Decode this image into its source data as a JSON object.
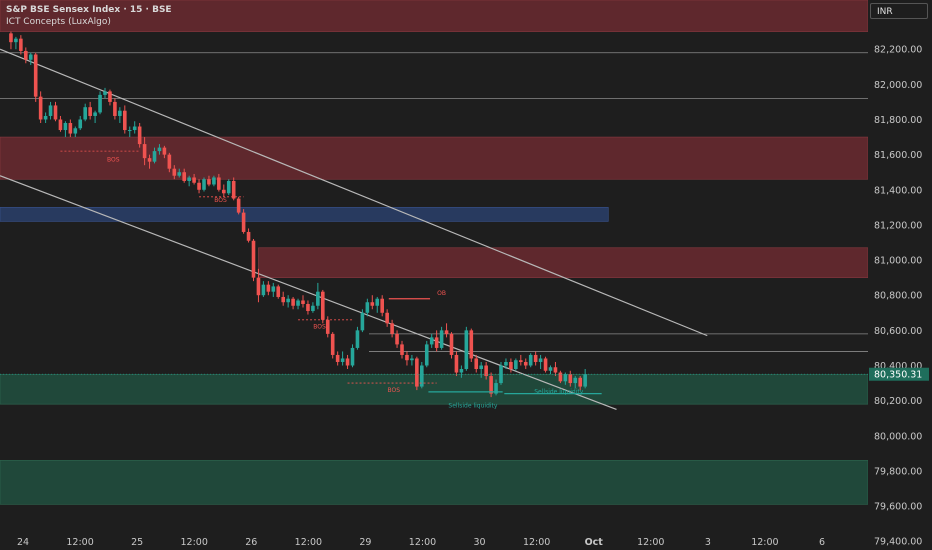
{
  "header": {
    "title": "S&P BSE Sensex Index · 15 · BSE",
    "indicator": "ICT Concepts (LuxAlgo)"
  },
  "currency": "INR",
  "colors": {
    "background": "#1e1e1e",
    "up": "#26a69a",
    "down": "#ef5350",
    "bearish_zone": "#6b2a30",
    "bullish_zone": "#21503f",
    "blue_zone": "#2a3f6b",
    "trendline": "#b8b8b8",
    "axis_text": "#c8c8c8",
    "last_price_bg": "#1f6e5c"
  },
  "chart_data": {
    "type": "candlestick",
    "title": "S&P BSE Sensex Index · 15 · BSE",
    "y_ticks": [
      "82,200.00",
      "82,000.00",
      "81,800.00",
      "81,600.00",
      "81,400.00",
      "81,200.00",
      "81,000.00",
      "80,800.00",
      "80,600.00",
      "80,400.00",
      "80,200.00",
      "80,000.00",
      "79,800.00",
      "79,600.00",
      "79,400.00"
    ],
    "ylim": [
      79350,
      82480
    ],
    "x_ticks": [
      "24",
      "12:00",
      "25",
      "12:00",
      "26",
      "12:00",
      "29",
      "12:00",
      "30",
      "12:00",
      "Oct",
      "12:00",
      "3",
      "12:00",
      "6"
    ],
    "last_price": "80,350.31",
    "zones": [
      {
        "kind": "bearish",
        "from_x": 0,
        "to_x": 53,
        "low": 82300,
        "high": 82480
      },
      {
        "kind": "bearish",
        "from_x": 0,
        "to_x": 53,
        "low": 81460,
        "high": 81700
      },
      {
        "kind": "blue",
        "from_x": 0,
        "to_x": 36.5,
        "low": 81220,
        "high": 81300
      },
      {
        "kind": "bearish",
        "from_x": 15.3,
        "to_x": 53,
        "low": 80900,
        "high": 81070
      },
      {
        "kind": "bullish",
        "from_x": 0,
        "to_x": 53,
        "low": 80180,
        "high": 80350
      },
      {
        "kind": "bullish",
        "from_x": 0,
        "to_x": 53,
        "low": 79610,
        "high": 79860
      }
    ],
    "labels": [
      {
        "text": "BOS",
        "x": 6.5,
        "y": 81560,
        "color": "down"
      },
      {
        "text": "BOS",
        "x": 13,
        "y": 81330,
        "color": "down"
      },
      {
        "text": "BOS",
        "x": 19,
        "y": 80610,
        "color": "down"
      },
      {
        "text": "BOS",
        "x": 23.5,
        "y": 80250,
        "color": "down"
      },
      {
        "text": "OB",
        "x": 26.4,
        "y": 80800,
        "color": "down"
      },
      {
        "text": "Sellside liquidity",
        "x": 28.3,
        "y": 80160,
        "color": "up"
      },
      {
        "text": "Sellside liquidity",
        "x": 33.5,
        "y": 80240,
        "color": "up"
      }
    ],
    "candles": [
      [
        0.3,
        82290,
        82300,
        82200,
        82240
      ],
      [
        0.6,
        82240,
        82270,
        82200,
        82260
      ],
      [
        0.9,
        82260,
        82280,
        82170,
        82190
      ],
      [
        1.2,
        82190,
        82210,
        82120,
        82140
      ],
      [
        1.5,
        82140,
        82180,
        82110,
        82170
      ],
      [
        1.8,
        82170,
        82180,
        81900,
        81930
      ],
      [
        2.1,
        81930,
        81960,
        81780,
        81800
      ],
      [
        2.4,
        81800,
        81840,
        81780,
        81820
      ],
      [
        2.7,
        81820,
        81900,
        81800,
        81880
      ],
      [
        3.0,
        81880,
        81900,
        81790,
        81800
      ],
      [
        3.3,
        81800,
        81820,
        81730,
        81740
      ],
      [
        3.6,
        81740,
        81790,
        81700,
        81780
      ],
      [
        3.9,
        81780,
        81800,
        81700,
        81720
      ],
      [
        4.2,
        81720,
        81760,
        81700,
        81750
      ],
      [
        4.5,
        81750,
        81820,
        81740,
        81800
      ],
      [
        4.8,
        81800,
        81890,
        81790,
        81870
      ],
      [
        5.1,
        81870,
        81900,
        81800,
        81820
      ],
      [
        5.4,
        81820,
        81850,
        81780,
        81840
      ],
      [
        5.7,
        81840,
        81960,
        81830,
        81940
      ],
      [
        6.0,
        81940,
        81980,
        81920,
        81960
      ],
      [
        6.3,
        81960,
        81970,
        81880,
        81900
      ],
      [
        6.6,
        81900,
        81920,
        81800,
        81820
      ],
      [
        6.9,
        81820,
        81870,
        81780,
        81850
      ],
      [
        7.2,
        81850,
        81880,
        81720,
        81740
      ],
      [
        7.5,
        81740,
        81760,
        81700,
        81740
      ],
      [
        7.8,
        81740,
        81790,
        81720,
        81760
      ],
      [
        8.1,
        81760,
        81780,
        81640,
        81660
      ],
      [
        8.4,
        81660,
        81700,
        81540,
        81580
      ],
      [
        8.7,
        81580,
        81600,
        81520,
        81560
      ],
      [
        9.0,
        81560,
        81640,
        81550,
        81620
      ],
      [
        9.3,
        81620,
        81660,
        81600,
        81640
      ],
      [
        9.6,
        81640,
        81650,
        81580,
        81600
      ],
      [
        9.9,
        81600,
        81610,
        81500,
        81520
      ],
      [
        10.2,
        81520,
        81540,
        81460,
        81480
      ],
      [
        10.5,
        81480,
        81520,
        81470,
        81500
      ],
      [
        10.8,
        81500,
        81520,
        81440,
        81450
      ],
      [
        11.1,
        81450,
        81480,
        81420,
        81470
      ],
      [
        11.4,
        81470,
        81490,
        81430,
        81440
      ],
      [
        11.7,
        81440,
        81460,
        81380,
        81400
      ],
      [
        12.0,
        81400,
        81470,
        81390,
        81460
      ],
      [
        12.3,
        81460,
        81480,
        81420,
        81430
      ],
      [
        12.6,
        81430,
        81480,
        81420,
        81470
      ],
      [
        12.9,
        81470,
        81490,
        81390,
        81400
      ],
      [
        13.2,
        81400,
        81430,
        81360,
        81380
      ],
      [
        13.5,
        81380,
        81460,
        81370,
        81450
      ],
      [
        13.8,
        81450,
        81470,
        81340,
        81350
      ],
      [
        14.1,
        81350,
        81360,
        81260,
        81270
      ],
      [
        14.4,
        81270,
        81290,
        81150,
        81160
      ],
      [
        14.7,
        81160,
        81180,
        81100,
        81110
      ],
      [
        15.0,
        81110,
        81120,
        80880,
        80900
      ],
      [
        15.3,
        80900,
        80950,
        80760,
        80800
      ],
      [
        15.6,
        80800,
        80880,
        80790,
        80860
      ],
      [
        15.9,
        80860,
        80880,
        80800,
        80820
      ],
      [
        16.2,
        80820,
        80870,
        80790,
        80850
      ],
      [
        16.5,
        80850,
        80860,
        80780,
        80790
      ],
      [
        16.8,
        80790,
        80820,
        80740,
        80760
      ],
      [
        17.1,
        80760,
        80800,
        80730,
        80780
      ],
      [
        17.4,
        80780,
        80790,
        80720,
        80740
      ],
      [
        17.7,
        80740,
        80780,
        80720,
        80770
      ],
      [
        18.0,
        80770,
        80800,
        80730,
        80750
      ],
      [
        18.3,
        80750,
        80770,
        80690,
        80710
      ],
      [
        18.6,
        80710,
        80760,
        80700,
        80740
      ],
      [
        18.9,
        80740,
        80870,
        80720,
        80820
      ],
      [
        19.2,
        80820,
        80830,
        80640,
        80660
      ],
      [
        19.5,
        80660,
        80680,
        80560,
        80580
      ],
      [
        19.8,
        80580,
        80590,
        80440,
        80460
      ],
      [
        20.1,
        80460,
        80480,
        80400,
        80420
      ],
      [
        20.4,
        80420,
        80480,
        80400,
        80440
      ],
      [
        20.7,
        80440,
        80460,
        80380,
        80400
      ],
      [
        21.0,
        80400,
        80520,
        80390,
        80500
      ],
      [
        21.3,
        80500,
        80620,
        80490,
        80600
      ],
      [
        21.6,
        80600,
        80720,
        80590,
        80700
      ],
      [
        21.9,
        80700,
        80780,
        80680,
        80760
      ],
      [
        22.2,
        80760,
        80800,
        80720,
        80740
      ],
      [
        22.5,
        80740,
        80790,
        80700,
        80780
      ],
      [
        22.8,
        80780,
        80800,
        80680,
        80700
      ],
      [
        23.1,
        80700,
        80720,
        80620,
        80640
      ],
      [
        23.4,
        80640,
        80660,
        80560,
        80580
      ],
      [
        23.7,
        80580,
        80600,
        80500,
        80520
      ],
      [
        24.0,
        80520,
        80540,
        80440,
        80460
      ],
      [
        24.3,
        80460,
        80480,
        80400,
        80430
      ],
      [
        24.6,
        80430,
        80460,
        80400,
        80440
      ],
      [
        24.9,
        80440,
        80450,
        80260,
        80280
      ],
      [
        25.2,
        80280,
        80420,
        80270,
        80400
      ],
      [
        25.5,
        80400,
        80540,
        80390,
        80520
      ],
      [
        25.8,
        80520,
        80580,
        80500,
        80560
      ],
      [
        26.1,
        80560,
        80600,
        80480,
        80500
      ],
      [
        26.4,
        80500,
        80620,
        80490,
        80600
      ],
      [
        26.7,
        80600,
        80640,
        80560,
        80580
      ],
      [
        27.0,
        80580,
        80590,
        80440,
        80460
      ],
      [
        27.3,
        80460,
        80480,
        80340,
        80360
      ],
      [
        27.6,
        80360,
        80400,
        80330,
        80380
      ],
      [
        27.9,
        80380,
        80620,
        80370,
        80600
      ],
      [
        28.2,
        80600,
        80610,
        80420,
        80440
      ],
      [
        28.5,
        80440,
        80460,
        80360,
        80380
      ],
      [
        28.8,
        80380,
        80420,
        80330,
        80400
      ],
      [
        29.1,
        80400,
        80420,
        80320,
        80340
      ],
      [
        29.4,
        80340,
        80360,
        80220,
        80240
      ],
      [
        29.7,
        80240,
        80320,
        80230,
        80300
      ],
      [
        30.0,
        80300,
        80420,
        80290,
        80400
      ],
      [
        30.3,
        80400,
        80440,
        80380,
        80420
      ],
      [
        30.6,
        80420,
        80440,
        80360,
        80380
      ],
      [
        30.9,
        80380,
        80440,
        80370,
        80430
      ],
      [
        31.2,
        80430,
        80460,
        80400,
        80420
      ],
      [
        31.5,
        80420,
        80440,
        80380,
        80400
      ],
      [
        31.8,
        80400,
        80470,
        80390,
        80460
      ],
      [
        32.1,
        80460,
        80480,
        80400,
        80420
      ],
      [
        32.4,
        80420,
        80460,
        80380,
        80440
      ],
      [
        32.7,
        80440,
        80450,
        80360,
        80370
      ],
      [
        33.0,
        80370,
        80400,
        80350,
        80390
      ],
      [
        33.3,
        80390,
        80420,
        80340,
        80360
      ],
      [
        33.6,
        80360,
        80370,
        80300,
        80310
      ],
      [
        33.9,
        80310,
        80360,
        80290,
        80350
      ],
      [
        34.2,
        80350,
        80370,
        80280,
        80300
      ],
      [
        34.5,
        80300,
        80340,
        80270,
        80330
      ],
      [
        34.8,
        80330,
        80340,
        80260,
        80280
      ],
      [
        35.1,
        80280,
        80380,
        80270,
        80350
      ]
    ],
    "trendlines": [
      {
        "x1": 0,
        "y1": 82200,
        "x2": 42.5,
        "y2": 80570
      },
      {
        "x1": 0,
        "y1": 81480,
        "x2": 37,
        "y2": 80150
      }
    ],
    "levels": [
      {
        "y": 82180,
        "x1": 0,
        "x2": 53
      },
      {
        "y": 81920,
        "x1": 0,
        "x2": 53
      },
      {
        "y": 80580,
        "x1": 22,
        "x2": 53
      },
      {
        "y": 80480,
        "x1": 22,
        "x2": 53
      }
    ],
    "marks": [
      {
        "kind": "ob",
        "y": 80780,
        "x1": 23.2,
        "x2": 25.7
      },
      {
        "kind": "liquidity",
        "y": 80250,
        "x1": 25.6,
        "x2": 30.1
      },
      {
        "kind": "liquidity",
        "y": 80240,
        "x1": 30.2,
        "x2": 36.1
      },
      {
        "kind": "bos",
        "y": 81620,
        "x1": 3.3,
        "x2": 8.1
      },
      {
        "kind": "bos",
        "y": 81360,
        "x1": 11.7,
        "x2": 14.4
      },
      {
        "kind": "bos",
        "y": 80660,
        "x1": 17.7,
        "x2": 21.0
      },
      {
        "kind": "bos",
        "y": 80300,
        "x1": 20.7,
        "x2": 26.1
      }
    ]
  }
}
